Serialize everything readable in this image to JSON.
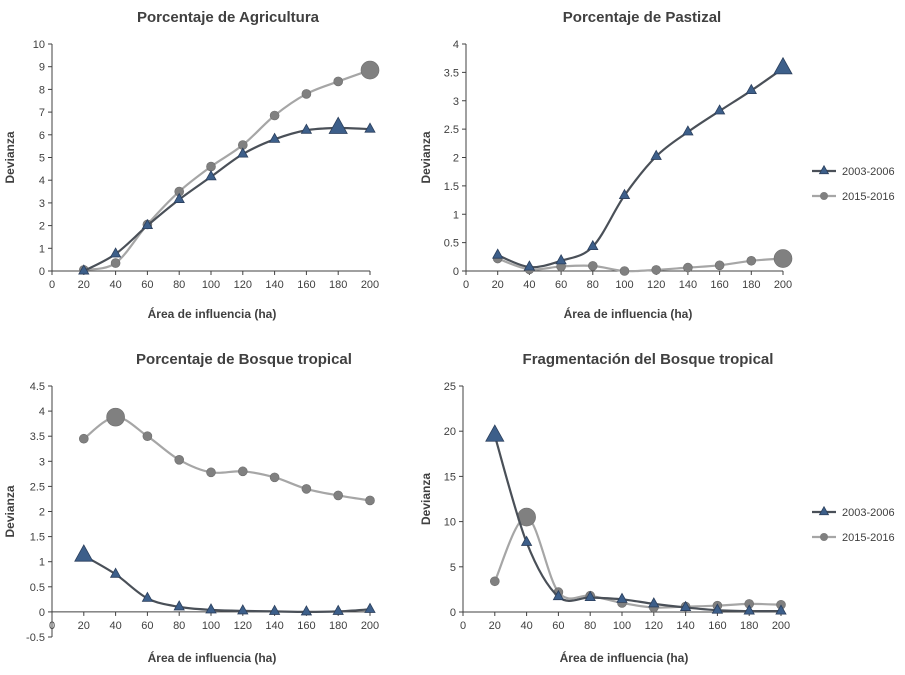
{
  "colors": {
    "series1_line": "#4a5058",
    "series1_marker": "#3d5f8a",
    "series2": "#a6a6a6",
    "series2_marker": "#808080",
    "axis": "#404040"
  },
  "legend": {
    "items": [
      "2003-2006",
      "2015-2016"
    ]
  },
  "chart_data": [
    {
      "type": "line",
      "title": "Porcentaje de Agricultura",
      "xlabel": "Área de influencia (ha)",
      "ylabel": "Devianza",
      "x": [
        20,
        40,
        60,
        80,
        100,
        120,
        140,
        160,
        180,
        200
      ],
      "xticks": [
        "0",
        "20",
        "40",
        "60",
        "80",
        "100",
        "120",
        "140",
        "160",
        "180",
        "200"
      ],
      "yticks": [
        "0",
        "1",
        "2",
        "3",
        "4",
        "5",
        "6",
        "7",
        "8",
        "9",
        "10"
      ],
      "xlim": [
        0,
        200
      ],
      "ylim": [
        0,
        10
      ],
      "highlight": {
        "series1": 180,
        "series2": 200
      },
      "series": [
        {
          "name": "2003-2006",
          "values": [
            0.0,
            0.75,
            2.0,
            3.15,
            4.15,
            5.15,
            5.8,
            6.2,
            6.3,
            6.25
          ]
        },
        {
          "name": "2015-2016",
          "values": [
            0.05,
            0.35,
            2.05,
            3.5,
            4.6,
            5.55,
            6.85,
            7.8,
            8.35,
            8.85
          ]
        }
      ]
    },
    {
      "type": "line",
      "title": "Porcentaje de Pastizal",
      "xlabel": "Área de influencia (ha)",
      "ylabel": "Devianza",
      "x": [
        20,
        40,
        60,
        80,
        100,
        120,
        140,
        160,
        180,
        200
      ],
      "xticks": [
        "0",
        "20",
        "40",
        "60",
        "80",
        "100",
        "120",
        "140",
        "160",
        "180",
        "200"
      ],
      "yticks": [
        "0",
        "0.5",
        "1",
        "1.5",
        "2",
        "2.5",
        "3",
        "3.5",
        "4"
      ],
      "xlim": [
        0,
        200
      ],
      "ylim": [
        0,
        4
      ],
      "highlight": {
        "series1": 200,
        "series2": 200
      },
      "series": [
        {
          "name": "2003-2006",
          "values": [
            0.28,
            0.07,
            0.18,
            0.43,
            1.33,
            2.02,
            2.45,
            2.82,
            3.18,
            3.57
          ]
        },
        {
          "name": "2015-2016",
          "values": [
            0.22,
            0.03,
            0.08,
            0.09,
            0.0,
            0.02,
            0.06,
            0.1,
            0.18,
            0.22
          ]
        }
      ]
    },
    {
      "type": "line",
      "title": "Porcentaje de Bosque tropical",
      "xlabel": "Área de influencia (ha)",
      "ylabel": "Devianza",
      "x": [
        20,
        40,
        60,
        80,
        100,
        120,
        140,
        160,
        180,
        200
      ],
      "xticks": [
        "0",
        "20",
        "40",
        "60",
        "80",
        "100",
        "120",
        "140",
        "160",
        "180",
        "200"
      ],
      "yticks": [
        "-0.5",
        "0",
        "0.5",
        "1",
        "1.5",
        "2",
        "2.5",
        "3",
        "3.5",
        "4",
        "4.5"
      ],
      "xlim": [
        0,
        200
      ],
      "ylim": [
        -0.5,
        4.5
      ],
      "highlight": {
        "series1": 20,
        "series2": 40
      },
      "series": [
        {
          "name": "2003-2006",
          "values": [
            1.12,
            0.75,
            0.27,
            0.1,
            0.04,
            0.02,
            0.01,
            0.0,
            0.01,
            0.05
          ]
        },
        {
          "name": "2015-2016",
          "values": [
            3.45,
            3.88,
            3.5,
            3.03,
            2.78,
            2.8,
            2.68,
            2.45,
            2.32,
            2.22
          ]
        }
      ]
    },
    {
      "type": "line",
      "title": "Fragmentación del Bosque tropical",
      "xlabel": "Área de influencia (ha)",
      "ylabel": "Devianza",
      "x": [
        20,
        40,
        60,
        80,
        100,
        120,
        140,
        160,
        180,
        200
      ],
      "xticks": [
        "0",
        "20",
        "40",
        "60",
        "80",
        "100",
        "120",
        "140",
        "160",
        "180",
        "200"
      ],
      "yticks": [
        "0",
        "5",
        "10",
        "15",
        "20",
        "25"
      ],
      "xlim": [
        0,
        200
      ],
      "ylim": [
        0,
        25
      ],
      "highlight": {
        "series1": 20,
        "series2": 40
      },
      "series": [
        {
          "name": "2003-2006",
          "values": [
            19.5,
            7.7,
            1.7,
            1.6,
            1.4,
            0.9,
            0.5,
            0.2,
            0.1,
            0.1
          ]
        },
        {
          "name": "2015-2016",
          "values": [
            3.4,
            10.5,
            2.2,
            1.8,
            1.0,
            0.5,
            0.6,
            0.7,
            0.9,
            0.8
          ]
        }
      ]
    }
  ]
}
